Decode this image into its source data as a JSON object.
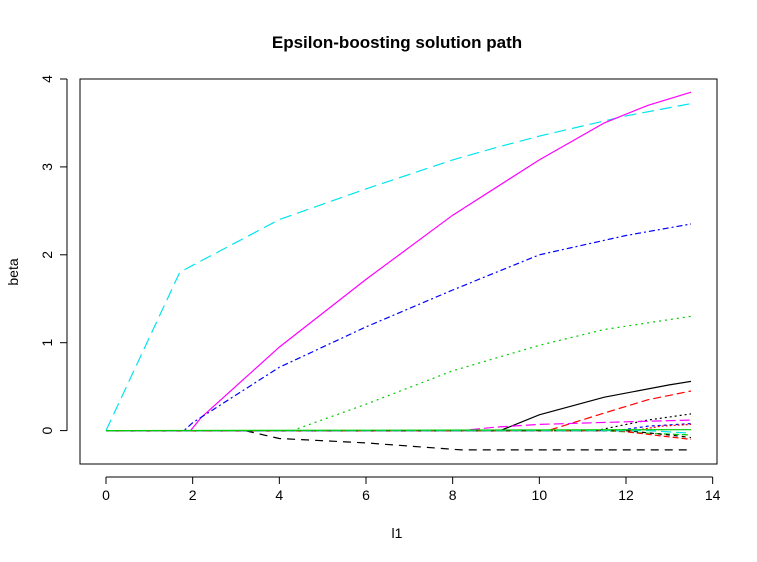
{
  "chart_data": {
    "type": "line",
    "title": "Epsilon-boosting solution path",
    "xlabel": "l1",
    "ylabel": "beta",
    "xlim": [
      -0.6,
      14.1
    ],
    "ylim": [
      -0.38,
      4.0
    ],
    "xticks": [
      0,
      2,
      4,
      6,
      8,
      10,
      12,
      14
    ],
    "yticks": [
      0,
      1,
      2,
      3,
      4
    ],
    "grid": false,
    "legend": "none",
    "series": [
      {
        "color": "#00e5ee",
        "dash": "12,6",
        "points": [
          [
            0,
            0
          ],
          [
            1.7,
            1.8
          ],
          [
            2,
            1.88
          ],
          [
            4,
            2.4
          ],
          [
            6,
            2.75
          ],
          [
            8,
            3.08
          ],
          [
            9,
            3.22
          ],
          [
            10,
            3.35
          ],
          [
            12,
            3.58
          ],
          [
            13.5,
            3.72
          ]
        ]
      },
      {
        "color": "#ff00ff",
        "dash": "",
        "points": [
          [
            0,
            0
          ],
          [
            1.95,
            0
          ],
          [
            2.2,
            0.15
          ],
          [
            4,
            0.95
          ],
          [
            6,
            1.72
          ],
          [
            8,
            2.45
          ],
          [
            10,
            3.08
          ],
          [
            11.5,
            3.5
          ],
          [
            12.5,
            3.7
          ],
          [
            13.5,
            3.85
          ]
        ]
      },
      {
        "color": "#0000ff",
        "dash": "6,3,2,3",
        "points": [
          [
            0,
            0
          ],
          [
            1.8,
            0
          ],
          [
            2,
            0.09
          ],
          [
            4,
            0.72
          ],
          [
            6,
            1.18
          ],
          [
            8,
            1.6
          ],
          [
            10,
            2.0
          ],
          [
            12,
            2.22
          ],
          [
            13.5,
            2.35
          ]
        ]
      },
      {
        "color": "#00cc00",
        "dash": "2,4",
        "points": [
          [
            0,
            0
          ],
          [
            4.3,
            0
          ],
          [
            6,
            0.3
          ],
          [
            8,
            0.68
          ],
          [
            10,
            0.97
          ],
          [
            11.5,
            1.15
          ],
          [
            13.5,
            1.3
          ]
        ]
      },
      {
        "color": "#000000",
        "dash": "",
        "points": [
          [
            0,
            0
          ],
          [
            9.1,
            0
          ],
          [
            10,
            0.18
          ],
          [
            11.5,
            0.38
          ],
          [
            13,
            0.52
          ],
          [
            13.5,
            0.56
          ]
        ]
      },
      {
        "color": "#ff0000",
        "dash": "8,4",
        "points": [
          [
            0,
            0
          ],
          [
            10.2,
            0
          ],
          [
            11.5,
            0.2
          ],
          [
            12.5,
            0.35
          ],
          [
            13.5,
            0.45
          ]
        ]
      },
      {
        "color": "#000000",
        "dash": "2,3",
        "points": [
          [
            0,
            0
          ],
          [
            11.3,
            0
          ],
          [
            12.5,
            0.12
          ],
          [
            13.5,
            0.19
          ]
        ]
      },
      {
        "color": "#000000",
        "dash": "8,6",
        "points": [
          [
            0,
            0
          ],
          [
            3.2,
            0
          ],
          [
            4,
            -0.09
          ],
          [
            6,
            -0.14
          ],
          [
            8.2,
            -0.22
          ],
          [
            9,
            -0.22
          ],
          [
            13.5,
            -0.22
          ]
        ]
      },
      {
        "color": "#ff00ff",
        "dash": "10,4",
        "points": [
          [
            0,
            0
          ],
          [
            8.2,
            0
          ],
          [
            9,
            0.04
          ],
          [
            10,
            0.07
          ],
          [
            12,
            0.1
          ],
          [
            13.5,
            0.12
          ]
        ]
      },
      {
        "color": "#0000ff",
        "dash": "3,3",
        "points": [
          [
            0,
            0
          ],
          [
            11.8,
            0
          ],
          [
            12.5,
            0.05
          ],
          [
            13.5,
            0.08
          ]
        ]
      },
      {
        "color": "#ff0000",
        "dash": "2,2",
        "points": [
          [
            0,
            0
          ],
          [
            12.2,
            0
          ],
          [
            12.8,
            0.05
          ],
          [
            13.5,
            0.07
          ]
        ]
      },
      {
        "color": "#00cc00",
        "dash": "6,3",
        "points": [
          [
            0,
            0
          ],
          [
            11.5,
            0
          ],
          [
            12.5,
            -0.03
          ],
          [
            13.5,
            -0.05
          ]
        ]
      },
      {
        "color": "#ff0000",
        "dash": "6,3",
        "points": [
          [
            0,
            0
          ],
          [
            11.8,
            0
          ],
          [
            12.8,
            -0.06
          ],
          [
            13.5,
            -0.1
          ]
        ]
      },
      {
        "color": "#000000",
        "dash": "4,4",
        "points": [
          [
            0,
            0
          ],
          [
            12,
            0
          ],
          [
            13,
            -0.05
          ],
          [
            13.5,
            -0.08
          ]
        ]
      },
      {
        "color": "#00e5ee",
        "dash": "10,5",
        "points": [
          [
            0,
            0
          ],
          [
            12.5,
            0
          ],
          [
            13.5,
            -0.03
          ]
        ]
      },
      {
        "color": "#00cc00",
        "dash": "",
        "points": [
          [
            0,
            0
          ],
          [
            13.5,
            0.01
          ]
        ]
      }
    ]
  }
}
